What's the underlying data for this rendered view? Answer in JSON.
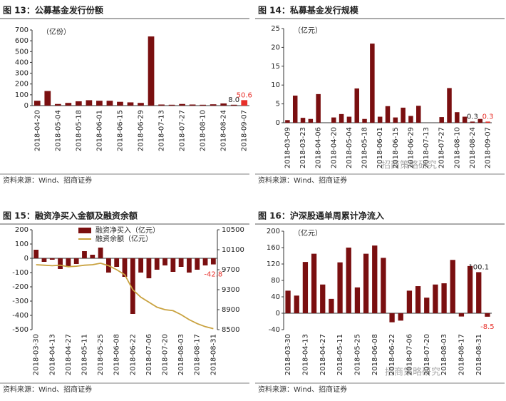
{
  "chart_data": [
    {
      "type": "bar",
      "title": "图 13：公募基金发行份额",
      "y_unit": "（亿份）",
      "source": "资料来源：Wind、招商证券",
      "categories": [
        "2018-04-20",
        null,
        "2018-05-04",
        null,
        "2018-05-18",
        null,
        "2018-06-01",
        null,
        "2018-06-15",
        null,
        "2018-06-29",
        null,
        "2018-07-13",
        null,
        "2018-07-27",
        null,
        "2018-08-10",
        null,
        "2018-08-24",
        null,
        "2018-09-07"
      ],
      "values": [
        45,
        135,
        15,
        25,
        40,
        50,
        45,
        45,
        35,
        30,
        25,
        640,
        10,
        8,
        15,
        10,
        8,
        12,
        20,
        8,
        50.6
      ],
      "value_labels": [
        null,
        null,
        null,
        null,
        null,
        null,
        null,
        null,
        null,
        null,
        null,
        null,
        null,
        null,
        null,
        null,
        null,
        null,
        null,
        "8.0",
        "50.6"
      ],
      "value_label_colors": [
        null,
        null,
        null,
        null,
        null,
        null,
        null,
        null,
        null,
        null,
        null,
        null,
        null,
        null,
        null,
        null,
        null,
        null,
        null,
        "#222222",
        "#e8302a"
      ],
      "color": "#7a0f10",
      "colors": [
        "#7a0f10",
        "#7a0f10",
        "#7a0f10",
        "#7a0f10",
        "#7a0f10",
        "#7a0f10",
        "#7a0f10",
        "#7a0f10",
        "#7a0f10",
        "#7a0f10",
        "#7a0f10",
        "#7a0f10",
        "#7a0f10",
        "#7a0f10",
        "#7a0f10",
        "#7a0f10",
        "#7a0f10",
        "#7a0f10",
        "#7a0f10",
        "#7a0f10",
        "#e8302a"
      ],
      "ylim": [
        0,
        700
      ],
      "yticks": [
        0,
        100,
        200,
        300,
        400,
        500,
        600,
        700
      ]
    },
    {
      "type": "bar",
      "title": "图 14：私募基金发行规模",
      "y_unit": "（亿元）",
      "source": "资料来源：Wind、招商证券",
      "watermark": "招商策略研究",
      "categories": [
        "2018-03-09",
        null,
        "2018-03-23",
        null,
        "2018-04-06",
        null,
        "2018-04-20",
        null,
        "2018-05-04",
        null,
        "2018-05-18",
        null,
        "2018-06-01",
        null,
        "2018-06-15",
        null,
        "2018-06-29",
        null,
        "2018-07-13",
        null,
        "2018-07-27",
        null,
        "2018-08-10",
        null,
        "2018-08-24",
        null,
        "2018-09-07"
      ],
      "values": [
        0.7,
        7.2,
        1.3,
        1.0,
        7.6,
        0,
        1.4,
        2.3,
        1.6,
        9.1,
        1.0,
        21,
        1.6,
        4.4,
        1.4,
        4.0,
        1.8,
        4.5,
        0,
        0,
        1.5,
        9.2,
        2.8,
        1.6,
        0.3,
        1.0,
        0.3
      ],
      "value_labels": [
        null,
        null,
        null,
        null,
        null,
        null,
        null,
        null,
        null,
        null,
        null,
        null,
        null,
        null,
        null,
        null,
        null,
        null,
        null,
        null,
        null,
        null,
        null,
        null,
        "0.3",
        null,
        "0.3"
      ],
      "value_label_colors": [
        null,
        null,
        null,
        null,
        null,
        null,
        null,
        null,
        null,
        null,
        null,
        null,
        null,
        null,
        null,
        null,
        null,
        null,
        null,
        null,
        null,
        null,
        null,
        null,
        "#222222",
        null,
        "#e8302a"
      ],
      "color": "#7a0f10",
      "colors": [
        "#7a0f10",
        "#7a0f10",
        "#7a0f10",
        "#7a0f10",
        "#7a0f10",
        "#7a0f10",
        "#7a0f10",
        "#7a0f10",
        "#7a0f10",
        "#7a0f10",
        "#7a0f10",
        "#7a0f10",
        "#7a0f10",
        "#7a0f10",
        "#7a0f10",
        "#7a0f10",
        "#7a0f10",
        "#7a0f10",
        "#7a0f10",
        "#7a0f10",
        "#7a0f10",
        "#7a0f10",
        "#7a0f10",
        "#7a0f10",
        "#7a0f10",
        "#7a0f10",
        "#e8302a"
      ],
      "ylim": [
        0,
        25
      ],
      "yticks": [
        0,
        5,
        10,
        15,
        20,
        25
      ]
    },
    {
      "type": "bar_line",
      "title": "图 15：融资净买入金额及融资余额",
      "source": "资料来源：Wind、招商证券",
      "legend": "top",
      "categories": [
        "2018-03-30",
        null,
        "2018-04-13",
        null,
        "2018-04-27",
        null,
        "2018-05-11",
        null,
        "2018-05-25",
        null,
        "2018-06-08",
        null,
        "2018-06-22",
        null,
        "2018-07-06",
        null,
        "2018-07-20",
        null,
        "2018-08-03",
        null,
        "2018-08-17",
        null,
        "2018-08-31"
      ],
      "series": [
        {
          "name": "融资净买入（亿元）",
          "kind": "bar",
          "color": "#7a0f10",
          "values": [
            60,
            -25,
            -10,
            -75,
            -55,
            -40,
            50,
            25,
            75,
            -100,
            -60,
            -130,
            -390,
            -100,
            -140,
            -80,
            -50,
            -95,
            -60,
            -100,
            -80,
            -50,
            -42.8
          ],
          "value_labels": [
            null,
            null,
            null,
            null,
            null,
            null,
            null,
            null,
            null,
            null,
            null,
            null,
            null,
            null,
            null,
            null,
            null,
            null,
            null,
            null,
            null,
            null,
            "-42.8"
          ],
          "value_label_colors": [
            null,
            null,
            null,
            null,
            null,
            null,
            null,
            null,
            null,
            null,
            null,
            null,
            null,
            null,
            null,
            null,
            null,
            null,
            null,
            null,
            null,
            null,
            "#e8302a"
          ]
        },
        {
          "name": "融资余额（亿元）",
          "kind": "line",
          "axis": "y2",
          "color": "#c9a23f",
          "values": [
            9800,
            9790,
            9780,
            9790,
            9760,
            9770,
            9790,
            9800,
            9830,
            9780,
            9700,
            9600,
            9300,
            9150,
            9050,
            8950,
            8900,
            8880,
            8800,
            8700,
            8620,
            8560,
            8520
          ]
        }
      ],
      "ylim": [
        -500,
        200
      ],
      "yticks": [
        -500,
        -400,
        -300,
        -200,
        -100,
        0,
        100,
        200
      ],
      "y2lim": [
        8500,
        10500
      ],
      "y2ticks": [
        8500,
        8900,
        9300,
        9700,
        10100,
        10500
      ]
    },
    {
      "type": "bar",
      "title": "图 16：沪深股通单周累计净流入",
      "y_unit": "（亿元）",
      "source": "资料来源：Wind、招商证券",
      "watermark": "招商策略研究",
      "categories": [
        "2018-03-30",
        null,
        "2018-04-13",
        null,
        "2018-04-27",
        null,
        "2018-05-11",
        null,
        "2018-05-25",
        null,
        "2018-06-08",
        null,
        "2018-06-22",
        null,
        "2018-07-06",
        null,
        "2018-07-20",
        null,
        "2018-08-03",
        null,
        "2018-08-17",
        null,
        "2018-08-31",
        null
      ],
      "values": [
        55,
        43,
        125,
        145,
        70,
        35,
        124,
        160,
        63,
        145,
        165,
        135,
        -22,
        -18,
        55,
        66,
        38,
        70,
        73,
        130,
        -8,
        115,
        100.1,
        -8.5
      ],
      "value_labels": [
        null,
        null,
        null,
        null,
        null,
        null,
        null,
        null,
        null,
        null,
        null,
        null,
        null,
        null,
        null,
        null,
        null,
        null,
        null,
        null,
        null,
        null,
        "100.1",
        "-8.5"
      ],
      "value_label_colors": [
        null,
        null,
        null,
        null,
        null,
        null,
        null,
        null,
        null,
        null,
        null,
        null,
        null,
        null,
        null,
        null,
        null,
        null,
        null,
        null,
        null,
        null,
        "#222222",
        "#e8302a"
      ],
      "color": "#7a0f10",
      "ylim": [
        -40,
        200
      ],
      "yticks": [
        -40,
        0,
        40,
        80,
        120,
        160,
        200
      ]
    }
  ]
}
